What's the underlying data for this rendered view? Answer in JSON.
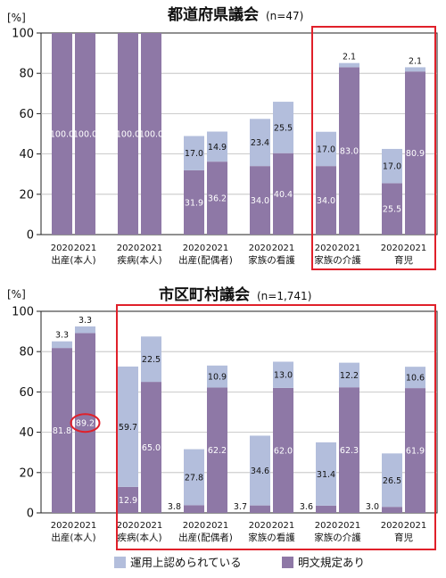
{
  "colors": {
    "operational": "#b3bedc",
    "explicit": "#8e78a6",
    "highlight": "#e0202a",
    "grid": "#bbbbbb",
    "axis": "#222222"
  },
  "legend": [
    {
      "label": "運用上認められている",
      "color": "#b3bedc"
    },
    {
      "label": "明文規定あり",
      "color": "#8e78a6"
    }
  ],
  "chart_data": [
    {
      "type": "bar",
      "stacked": true,
      "title": "都道府県議会",
      "subtitle": "(n=47)",
      "ylabel": "[%]",
      "ylim": [
        0,
        100
      ],
      "yticks": [
        0,
        20,
        40,
        60,
        80,
        100
      ],
      "grid": true,
      "categories": [
        "出産(本人)",
        "疾病(本人)",
        "出産(配偶者)",
        "家族の看護",
        "家族の介護",
        "育児"
      ],
      "years": [
        "2020",
        "2021"
      ],
      "series": [
        {
          "name": "明文規定あり",
          "values": [
            [
              100.0,
              100.0
            ],
            [
              100.0,
              100.0
            ],
            [
              31.9,
              36.2
            ],
            [
              34.0,
              40.4
            ],
            [
              34.0,
              83.0
            ],
            [
              25.5,
              80.9
            ]
          ]
        },
        {
          "name": "運用上認められている",
          "values": [
            [
              0,
              0
            ],
            [
              0,
              0
            ],
            [
              17.0,
              14.9
            ],
            [
              23.4,
              25.5
            ],
            [
              17.0,
              2.1
            ],
            [
              17.0,
              2.1
            ]
          ]
        }
      ],
      "labels": {
        "explicit": [
          [
            "100.0",
            "100.0"
          ],
          [
            "100.0",
            "100.0"
          ],
          [
            "31.9",
            "36.2"
          ],
          [
            "34.0",
            "40.4"
          ],
          [
            "34.0",
            "83.0"
          ],
          [
            "25.5",
            "80.9"
          ]
        ],
        "operational": [
          [
            "",
            ""
          ],
          [
            "",
            ""
          ],
          [
            "17.0",
            "14.9"
          ],
          [
            "23.4",
            "25.5"
          ],
          [
            "17.0",
            "2.1"
          ],
          [
            "17.0",
            "2.1"
          ]
        ]
      },
      "highlight_categories": [
        4,
        5
      ]
    },
    {
      "type": "bar",
      "stacked": true,
      "title": "市区町村議会",
      "subtitle": "(n=1,741)",
      "ylabel": "[%]",
      "ylim": [
        0,
        100
      ],
      "yticks": [
        0,
        20,
        40,
        60,
        80,
        100
      ],
      "grid": true,
      "categories": [
        "出産(本人)",
        "疾病(本人)",
        "出産(配偶者)",
        "家族の看護",
        "家族の介護",
        "育児"
      ],
      "years": [
        "2020",
        "2021"
      ],
      "series": [
        {
          "name": "明文規定あり",
          "values": [
            [
              81.8,
              89.2
            ],
            [
              12.9,
              65.0
            ],
            [
              3.8,
              62.2
            ],
            [
              3.7,
              62.0
            ],
            [
              3.6,
              62.3
            ],
            [
              3.0,
              61.9
            ]
          ]
        },
        {
          "name": "運用上認められている",
          "values": [
            [
              3.3,
              3.3
            ],
            [
              59.7,
              22.5
            ],
            [
              27.8,
              10.9
            ],
            [
              34.6,
              13.0
            ],
            [
              31.4,
              12.2
            ],
            [
              26.5,
              10.6
            ]
          ]
        }
      ],
      "labels": {
        "explicit": [
          [
            "81.8",
            "89.2"
          ],
          [
            "12.9",
            "65.0"
          ],
          [
            "3.8",
            "62.2"
          ],
          [
            "3.7",
            "62.0"
          ],
          [
            "3.6",
            "62.3"
          ],
          [
            "3.0",
            "61.9"
          ]
        ],
        "operational": [
          [
            "3.3",
            "3.3"
          ],
          [
            "59.7",
            "22.5"
          ],
          [
            "27.8",
            "10.9"
          ],
          [
            "34.6",
            "13.0"
          ],
          [
            "31.4",
            "12.2"
          ],
          [
            "26.5",
            "10.6"
          ]
        ]
      },
      "highlight_categories": [
        1,
        2,
        3,
        4,
        5
      ],
      "circled_label": {
        "category": 0,
        "year": 1,
        "text": "89.2"
      }
    }
  ]
}
